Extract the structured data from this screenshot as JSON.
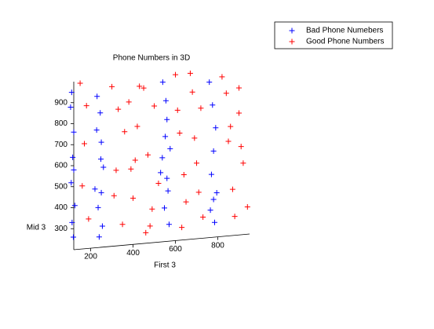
{
  "chart_data": {
    "type": "scatter",
    "title": "Phone Numbers in 3D",
    "xlabel": "First 3",
    "ylabel": "Mid 3",
    "xlim": [
      120,
      950
    ],
    "ylim": [
      200,
      1000
    ],
    "xticks": [
      200,
      400,
      600,
      800
    ],
    "yticks": [
      300,
      400,
      500,
      600,
      700,
      800,
      900
    ],
    "legend": "top-right",
    "series": [
      {
        "name": "Bad Phone Numebers",
        "color": "#0000ff",
        "x": [
          110,
          105,
          120,
          115,
          108,
          125,
          112,
          118,
          230,
          245,
          250,
          260,
          220,
          235,
          255,
          240,
          248,
          228,
          540,
          555,
          560,
          575,
          530,
          565,
          548,
          570,
          552,
          538,
          760,
          775,
          790,
          780,
          770,
          795,
          765,
          785,
          120,
          250,
          560,
          780
        ],
        "values": [
          950,
          880,
          760,
          640,
          520,
          410,
          330,
          260,
          920,
          840,
          700,
          580,
          480,
          390,
          300,
          250,
          620,
          760,
          960,
          870,
          780,
          640,
          530,
          440,
          360,
          280,
          700,
          600,
          940,
          830,
          720,
          610,
          500,
          410,
          330,
          270,
          580,
          460,
          500,
          380
        ]
      },
      {
        "name": "Good Phone Numbers",
        "color": "#ff0000",
        "x": [
          150,
          170,
          190,
          300,
          320,
          350,
          380,
          400,
          420,
          450,
          470,
          480,
          500,
          520,
          600,
          620,
          650,
          680,
          700,
          720,
          730,
          820,
          850,
          870,
          900,
          920,
          940,
          180,
          310,
          360,
          410,
          460,
          490,
          610,
          640,
          690,
          710,
          840,
          880,
          910,
          330,
          430,
          630,
          860,
          160,
          390,
          670,
          900
        ],
        "values": [
          990,
          700,
          340,
          960,
          560,
          300,
          880,
          420,
          760,
          940,
          620,
          280,
          850,
          480,
          990,
          710,
          380,
          900,
          560,
          820,
          300,
          960,
          650,
          420,
          900,
          540,
          330,
          880,
          440,
          740,
          600,
          250,
          360,
          820,
          510,
          680,
          420,
          880,
          290,
          620,
          850,
          950,
          260,
          720,
          500,
          560,
          990,
          780
        ]
      }
    ]
  }
}
